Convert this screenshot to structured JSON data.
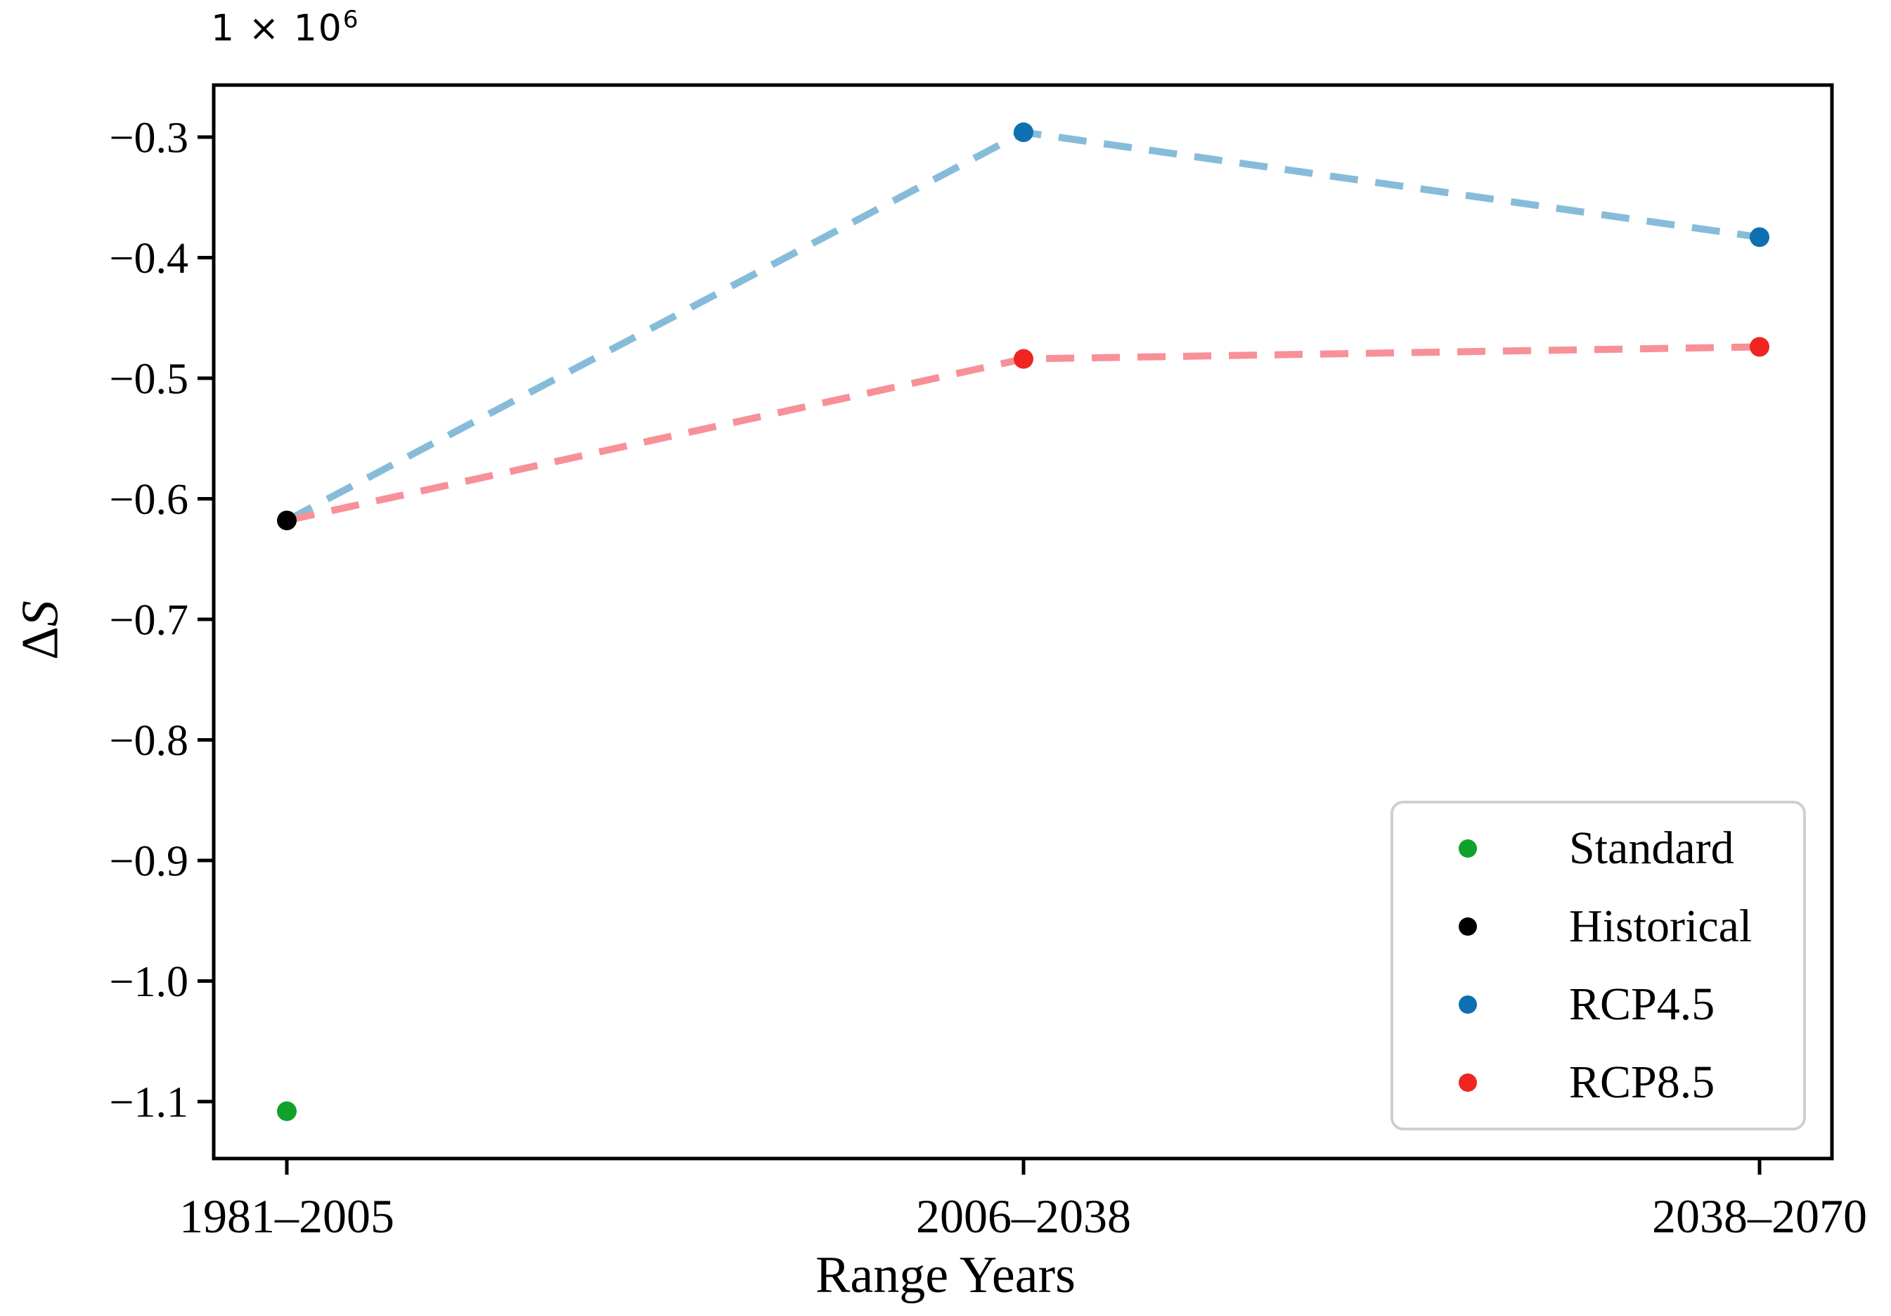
{
  "y_axis": {
    "offset_base": "1 × 10",
    "offset_exp": "6",
    "label_delta": "Δ",
    "label_s": "S",
    "ticks": [
      {
        "label": "−0.3",
        "value": -0.3
      },
      {
        "label": "−0.4",
        "value": -0.4
      },
      {
        "label": "−0.5",
        "value": -0.5
      },
      {
        "label": "−0.6",
        "value": -0.6
      },
      {
        "label": "−0.7",
        "value": -0.7
      },
      {
        "label": "−0.8",
        "value": -0.8
      },
      {
        "label": "−0.9",
        "value": -0.9
      },
      {
        "label": "−1.0",
        "value": -1.0
      },
      {
        "label": "−1.1",
        "value": -1.1
      }
    ]
  },
  "x_axis": {
    "label": "Range Years",
    "categories": [
      "1981–2005",
      "2006–2038",
      "2038–2070"
    ]
  },
  "legend": {
    "entries": [
      {
        "label": "Standard",
        "color": "#10a12b"
      },
      {
        "label": "Historical",
        "color": "#000000"
      },
      {
        "label": "RCP4.5",
        "color": "#0e70b0"
      },
      {
        "label": "RCP8.5",
        "color": "#f02421"
      }
    ]
  },
  "chart_data": {
    "type": "line",
    "title": "",
    "xlabel": "Range Years",
    "ylabel": "ΔS",
    "y_scale_note": "values in units of 1 × 10⁶",
    "categories": [
      "1981–2005",
      "2006–2038",
      "2038–2070"
    ],
    "ylim": [
      -1.147,
      -0.257
    ],
    "grid": false,
    "legend_position": "lower right",
    "series": [
      {
        "name": "Standard",
        "marker_color": "#10a12b",
        "line": false,
        "points": [
          {
            "x": "1981–2005",
            "y": -1.108
          }
        ]
      },
      {
        "name": "Historical",
        "marker_color": "#000000",
        "line": false,
        "points": [
          {
            "x": "1981–2005",
            "y": -0.618
          }
        ]
      },
      {
        "name": "RCP4.5",
        "marker_color": "#0e70b0",
        "line_color": "#86bcd9",
        "line_dash": true,
        "line_x": [
          "1981–2005",
          "2006–2038",
          "2038–2070"
        ],
        "line_y": [
          -0.618,
          -0.296,
          -0.383
        ],
        "points": [
          {
            "x": "2006–2038",
            "y": -0.296
          },
          {
            "x": "2038–2070",
            "y": -0.383
          }
        ]
      },
      {
        "name": "RCP8.5",
        "marker_color": "#f02421",
        "line_color": "#f89098",
        "line_dash": true,
        "line_x": [
          "1981–2005",
          "2006–2038",
          "2038–2070"
        ],
        "line_y": [
          -0.618,
          -0.484,
          -0.474
        ],
        "points": [
          {
            "x": "2006–2038",
            "y": -0.484
          },
          {
            "x": "2038–2070",
            "y": -0.474
          }
        ]
      }
    ]
  }
}
